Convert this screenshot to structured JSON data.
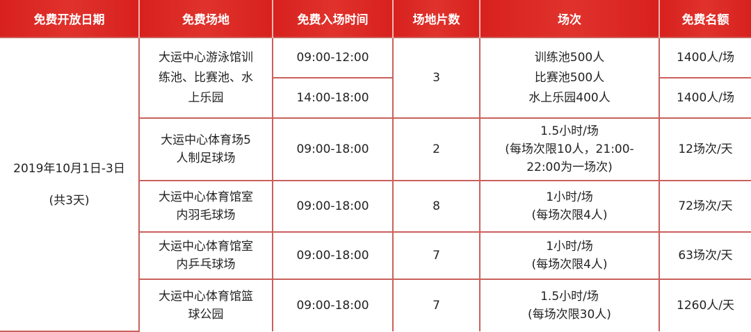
{
  "headers": [
    "免费开放日期",
    "免费场地",
    "免费入场时间",
    "场地片数",
    "场次",
    "免费名额"
  ],
  "date": {
    "line1": "2019年10月1日-3日",
    "line2": "(共3天)"
  },
  "rows": [
    {
      "venue": "大运中心游泳馆训\n练池、比赛池、水\n上乐园",
      "times": [
        "09:00-12:00",
        "14:00-18:00"
      ],
      "count": "3",
      "session": "训练池500人\n比赛池500人\n水上乐园400人",
      "quota": [
        "1400人/场",
        "1400人/场"
      ]
    },
    {
      "venue": "大运中心体育场5\n人制足球场",
      "time": "09:00-18:00",
      "count": "2",
      "session": "1.5小时/场\n(每场次限10人，21:00-\n22:00为一场次)",
      "quota": "12场次/天"
    },
    {
      "venue": "大运中心体育馆室\n内羽毛球场",
      "time": "09:00-18:00",
      "count": "8",
      "session": "1小时/场\n(每场次限4人)",
      "quota": "72场次/天"
    },
    {
      "venue": "大运中心体育馆室\n内乒乓球场",
      "time": "09:00-18:00",
      "count": "7",
      "session": "1小时/场\n(每场次限4人)",
      "quota": "63场次/天"
    },
    {
      "venue": "大运中心体育馆篮\n球公园",
      "time": "09:00-18:00",
      "count": "7",
      "session": "1.5小时/场\n(每场次限30人)",
      "quota": "1260人/天"
    }
  ],
  "colors": {
    "header": "#d8211e",
    "border": "#c9605c"
  }
}
